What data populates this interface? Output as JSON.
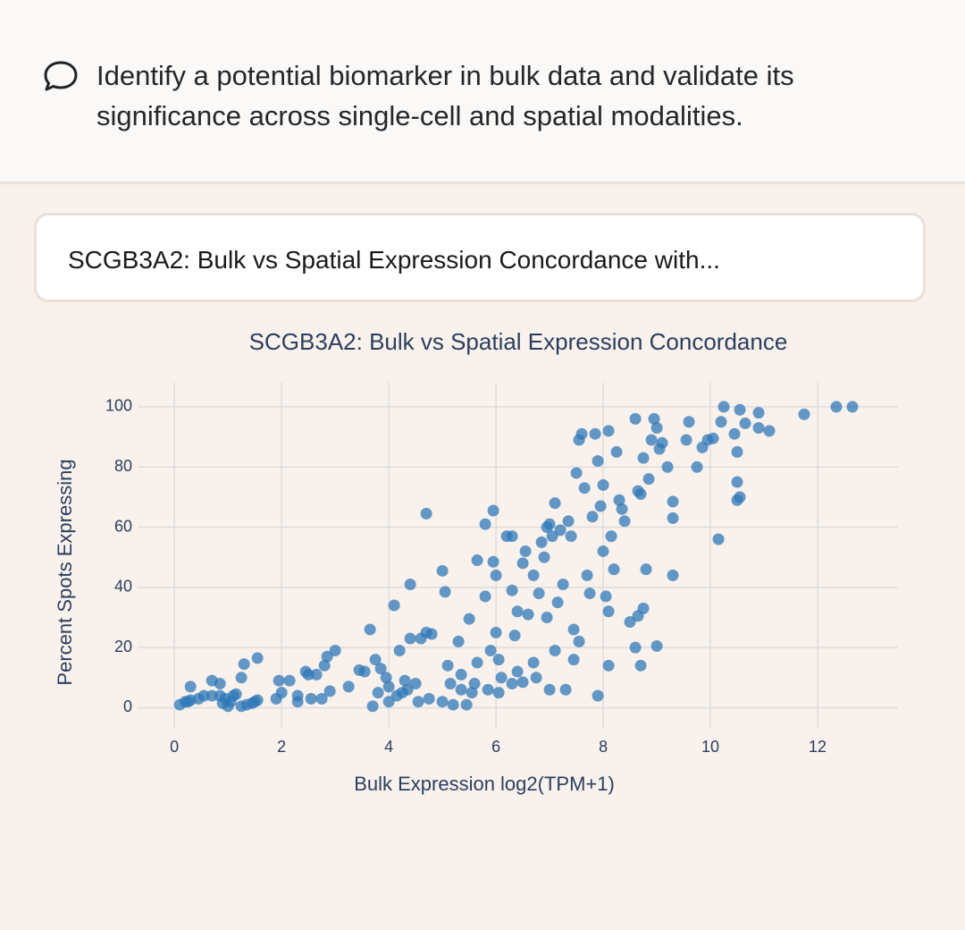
{
  "prompt": "Identify a potential biomarker in bulk data and validate its significance across single-cell and spatial modalities.",
  "card": {
    "title": "SCGB3A2: Bulk vs Spatial Expression Concordance with..."
  },
  "chart_data": {
    "type": "scatter",
    "title": "SCGB3A2: Bulk vs Spatial Expression Concordance",
    "x_label": "Bulk Expression log2(TPM+1)",
    "y_label": "Percent Spots Expressing",
    "color": "#2f78b8",
    "grid": true,
    "xlim": [
      -0.67,
      13.5
    ],
    "xticks": [
      0,
      2,
      4,
      6,
      8,
      10,
      12
    ],
    "ylim": [
      -7,
      108
    ],
    "yticks": [
      0,
      20,
      40,
      60,
      80,
      100
    ],
    "x": [
      0.1,
      0.2,
      0.25,
      0.3,
      0.3,
      0.45,
      0.55,
      0.7,
      0.7,
      0.85,
      0.85,
      0.9,
      0.95,
      1.0,
      1.05,
      1.1,
      1.15,
      1.25,
      1.25,
      1.3,
      1.35,
      1.45,
      1.5,
      1.55,
      1.55,
      1.9,
      1.95,
      2.0,
      2.15,
      2.3,
      2.3,
      2.45,
      2.5,
      2.55,
      2.65,
      2.75,
      2.8,
      2.85,
      2.9,
      3.0,
      3.25,
      3.45,
      3.55,
      3.65,
      3.7,
      3.75,
      3.8,
      3.85,
      3.95,
      4.0,
      4.0,
      4.1,
      4.15,
      4.2,
      4.25,
      4.3,
      4.35,
      4.4,
      4.4,
      4.5,
      4.55,
      4.6,
      4.7,
      4.7,
      4.75,
      4.8,
      5.0,
      5.0,
      5.05,
      5.1,
      5.15,
      5.2,
      5.3,
      5.35,
      5.35,
      5.45,
      5.5,
      5.55,
      5.6,
      5.65,
      5.65,
      5.8,
      5.8,
      5.85,
      5.9,
      5.95,
      5.95,
      6.0,
      6.0,
      6.05,
      6.1,
      6.2,
      6.3,
      6.3,
      6.35,
      6.4,
      6.4,
      6.5,
      6.55,
      6.6,
      6.7,
      6.7,
      6.8,
      6.85,
      6.9,
      6.95,
      6.95,
      7.0,
      7.05,
      7.1,
      7.1,
      7.15,
      7.2,
      7.25,
      7.35,
      7.4,
      7.45,
      7.45,
      7.5,
      7.55,
      7.6,
      7.65,
      7.7,
      7.75,
      7.8,
      7.85,
      7.9,
      7.95,
      8.0,
      8.0,
      8.05,
      8.1,
      8.1,
      8.15,
      8.2,
      8.25,
      8.3,
      8.35,
      8.4,
      8.5,
      8.6,
      8.65,
      8.7,
      8.7,
      8.75,
      8.8,
      8.85,
      8.9,
      8.95,
      9.0,
      9.05,
      9.1,
      9.2,
      9.3,
      9.3,
      9.3,
      9.55,
      9.6,
      9.75,
      9.85,
      9.95,
      10.05,
      10.15,
      10.2,
      10.25,
      10.45,
      10.5,
      10.5,
      10.5,
      10.55,
      10.55,
      10.65,
      10.9,
      10.9,
      11.1,
      11.75,
      12.35,
      12.65,
      7.9,
      7.0,
      7.3,
      6.05,
      6.3,
      6.5,
      8.6,
      9.0,
      8.65,
      8.75,
      7.55,
      8.1,
      6.75
    ],
    "y": [
      1,
      2,
      2,
      7,
      2.5,
      3,
      4,
      9,
      4,
      8,
      4,
      1.5,
      3,
      0.5,
      2,
      4,
      4.5,
      0.5,
      10,
      14.5,
      1,
      1.5,
      2,
      2.5,
      16.5,
      3,
      9,
      5,
      9,
      4,
      2,
      12,
      11,
      3,
      11,
      3,
      14,
      17,
      5.5,
      19,
      7,
      12.5,
      12,
      26,
      0.5,
      16,
      5,
      13,
      10,
      2,
      7,
      34,
      4,
      19,
      5,
      9,
      6,
      41,
      23,
      8,
      2,
      23,
      64.5,
      25,
      3,
      24.5,
      2,
      45.5,
      38.5,
      14,
      8,
      1,
      22,
      11,
      6,
      1,
      29.5,
      5,
      8,
      49,
      15,
      61,
      37,
      6,
      19,
      65.5,
      48.5,
      44,
      25,
      16,
      10,
      57,
      57,
      39,
      24,
      32,
      12,
      48,
      52,
      31,
      44,
      15,
      38,
      55,
      50,
      30,
      60,
      61,
      57,
      68,
      19,
      35,
      59,
      41,
      62,
      57,
      26,
      16,
      78,
      89,
      91,
      73,
      44,
      38,
      63.5,
      91,
      82,
      67,
      74,
      52,
      37,
      14,
      92,
      57,
      46,
      85,
      69,
      66,
      62,
      28.5,
      96,
      72,
      71,
      14,
      83,
      46,
      76,
      89,
      96,
      93,
      86,
      88,
      80,
      44,
      68.5,
      63,
      89,
      95,
      80,
      86.5,
      89,
      89.5,
      56,
      95,
      100,
      91,
      85,
      75,
      69,
      70,
      99,
      94.5,
      98,
      93,
      92,
      97.5,
      100,
      100,
      4,
      6,
      6,
      5,
      8,
      8.5,
      20,
      20.5,
      30.5,
      33,
      22,
      32,
      10
    ]
  }
}
